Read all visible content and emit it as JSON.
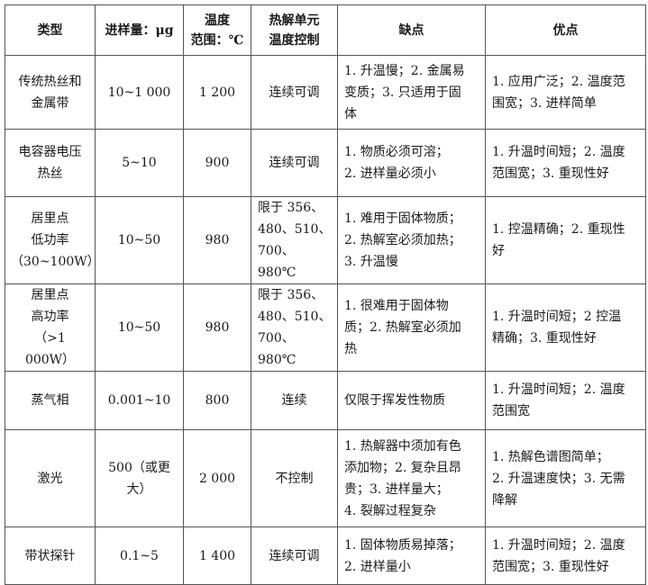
{
  "headers": [
    "类型",
    "进样量：μg",
    "温度\n范围：℃",
    "热解单元\n温度控制",
    "缺点",
    "优点"
  ],
  "rows": [
    {
      "type": "传统热丝和\n金属带",
      "sample": "10~1 000",
      "temp": "1 200",
      "control": "连续可调",
      "cons": "1. 升温慢；2. 金属易\n变质；3. 只适用于固\n体",
      "pros": "1. 应用广泛；2. 温度范\n围宽；3. 进样简单"
    },
    {
      "type": "电容器电压\n热丝",
      "sample": "5~10",
      "temp": "900",
      "control": "连续可调",
      "cons": "1. 物质必须可溶；\n2. 进样量必须小",
      "pros": "1. 升温时间短；2. 温度\n范围宽；3. 重现性好"
    },
    {
      "type": "居里点\n低功率\n（30~100W）",
      "sample": "10~50",
      "temp": "980",
      "control": "限于 356、\n480、510、\n700、980℃",
      "cons": "1. 难用于固体物质；\n2. 热解室必须加热；\n3. 升温慢",
      "pros": "1. 控温精确；2. 重现性\n好"
    },
    {
      "type": "居里点\n高功率\n（>1 000W）",
      "sample": "10~50",
      "temp": "980",
      "control": "限于 356、\n480、510、\n700、980℃",
      "cons": "1. 很难用于固体物\n质；2. 热解室必须加\n热",
      "pros": "1. 升温时间短；2 控温\n精确；3. 重现性好"
    },
    {
      "type": "蒸气相",
      "sample": "0.001~10",
      "temp": "800",
      "control": "连续",
      "cons": "仅限于挥发性物质",
      "pros": "1. 升温时间短；2. 温度\n范围宽"
    },
    {
      "type": "激光",
      "sample": "500（或更\n大）",
      "temp": "2 000",
      "control": "不控制",
      "cons": "1. 热解器中须加有色\n添加物；2. 复杂且昂\n贵；3. 进样量大；\n4. 裂解过程复杂",
      "pros": "1. 热解色谱图简单；\n2. 升温速度快；3. 无需\n降解"
    },
    {
      "type": "带状探针",
      "sample": "0.1~5",
      "temp": "1 400",
      "control": "连续可调",
      "cons": "1. 固体物质易掉落；\n2. 进样量小",
      "pros": "1. 升温时间短；2. 温度\n范围宽；3. 重现性好"
    }
  ]
}
